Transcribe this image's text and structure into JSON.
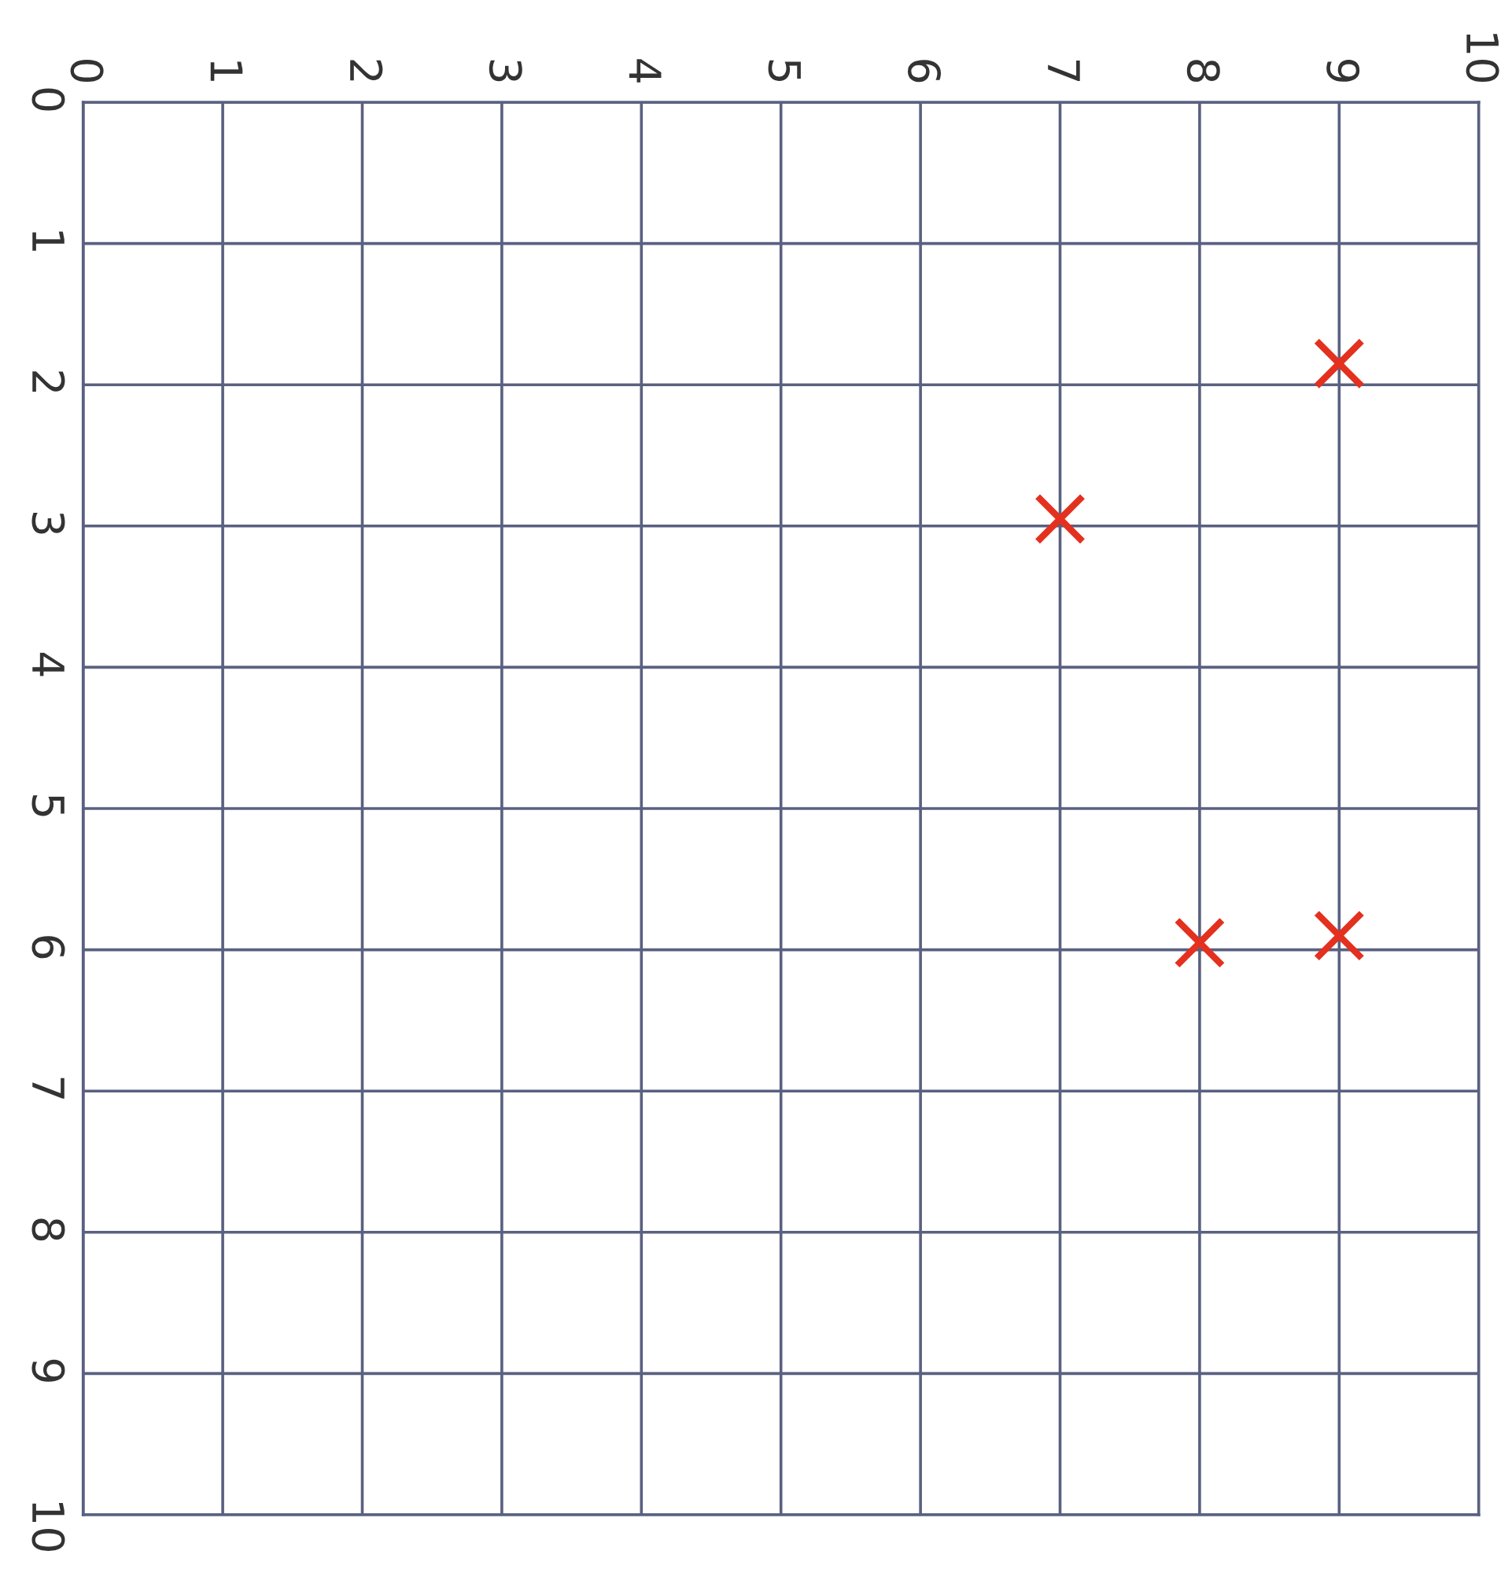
{
  "chart_data": {
    "type": "scatter",
    "x": [
      9,
      7,
      8,
      9
    ],
    "values": [
      1.85,
      2.95,
      5.95,
      5.9
    ],
    "color": "#e4301f",
    "marker": "cross",
    "xlim": [
      0,
      10
    ],
    "xticks": [
      0,
      1,
      2,
      3,
      4,
      5,
      6,
      7,
      8,
      9,
      10
    ],
    "ylim": [
      10,
      0
    ],
    "yticks": [
      0,
      1,
      2,
      3,
      4,
      5,
      6,
      7,
      8,
      9,
      10
    ],
    "grid": true
  }
}
